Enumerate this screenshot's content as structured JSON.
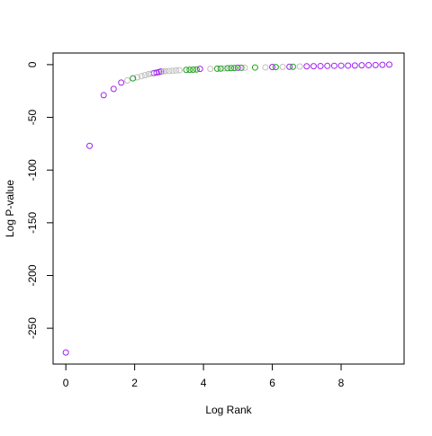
{
  "chart_data": {
    "type": "scatter",
    "xlabel": "Log Rank",
    "ylabel": "Log P-value",
    "xlim": [
      -0.37,
      9.83
    ],
    "ylim": [
      -284,
      11
    ],
    "xticks": [
      0,
      2,
      4,
      6,
      8
    ],
    "yticks": [
      0,
      -50,
      -100,
      -150,
      -200,
      -250
    ],
    "series": [
      {
        "color": "#a020f0",
        "x": [
          0,
          0.69,
          1.1,
          1.39,
          1.61,
          2.56,
          2.64,
          2.71,
          2.77,
          3.9,
          5.0,
          6.0,
          6.5,
          7.0,
          7.2,
          7.4,
          7.6,
          7.8,
          8.0,
          8.2,
          8.4,
          8.6,
          8.8,
          9.0,
          9.2,
          9.4
        ],
        "values": [
          -273,
          -77,
          -29,
          -23,
          -17,
          -8,
          -7.5,
          -7,
          -6.5,
          -4,
          -3,
          -2.2,
          -2,
          -1.6,
          -1.5,
          -1.4,
          -1.2,
          -1.1,
          -1,
          -0.9,
          -0.8,
          -0.6,
          -0.5,
          -0.4,
          -0.2,
          0
        ]
      },
      {
        "color": "#bebebe",
        "x": [
          1.79,
          2.08,
          2.2,
          2.3,
          2.4,
          2.48,
          2.83,
          2.9,
          3.0,
          3.1,
          3.2,
          3.3,
          4.2,
          4.6,
          5.2,
          5.8,
          6.3,
          6.8
        ],
        "values": [
          -15,
          -12,
          -11,
          -10,
          -9,
          -8.5,
          -6.5,
          -6.2,
          -6,
          -5.8,
          -5.5,
          -5.3,
          -4,
          -3.6,
          -3,
          -2.6,
          -2.2,
          -1.8
        ]
      },
      {
        "color": "#22a022",
        "x": [
          1.95,
          3.5,
          3.6,
          3.7,
          3.8,
          4.4,
          4.5,
          4.7,
          4.8,
          4.9,
          5.1,
          5.5,
          6.1,
          6.6
        ],
        "values": [
          -13,
          -5,
          -4.9,
          -4.8,
          -4.6,
          -3.8,
          -3.7,
          -3.4,
          -3.3,
          -3.2,
          -3,
          -2.7,
          -2.3,
          -2
        ]
      }
    ]
  }
}
